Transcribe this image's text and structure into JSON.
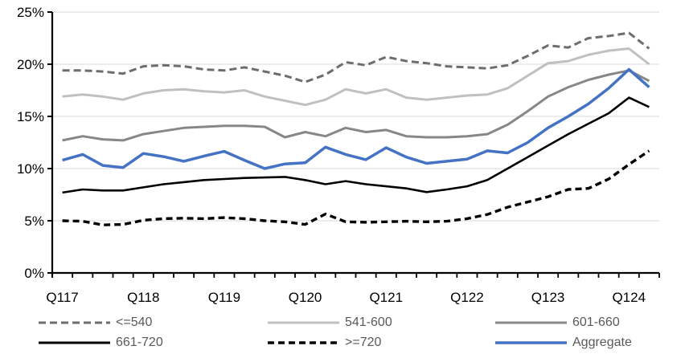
{
  "chart_data": {
    "type": "line",
    "title": "",
    "xlabel": "",
    "ylabel": "",
    "ylim": [
      0,
      25
    ],
    "y_tick_step": 5,
    "y_tick_labels": [
      "0%",
      "5%",
      "10%",
      "15%",
      "20%",
      "25%"
    ],
    "x_shown_labels": [
      "Q117",
      "Q118",
      "Q119",
      "Q120",
      "Q121",
      "Q122",
      "Q123",
      "Q124"
    ],
    "x_label_every": 4,
    "grid": "horizontal",
    "legend_position": "bottom",
    "categories": [
      "Q117",
      "Q217",
      "Q317",
      "Q417",
      "Q118",
      "Q218",
      "Q318",
      "Q418",
      "Q119",
      "Q219",
      "Q319",
      "Q419",
      "Q120",
      "Q220",
      "Q320",
      "Q420",
      "Q121",
      "Q221",
      "Q321",
      "Q421",
      "Q122",
      "Q222",
      "Q322",
      "Q422",
      "Q123",
      "Q223",
      "Q323",
      "Q423",
      "Q124",
      "Q224"
    ],
    "series": [
      {
        "name": "<=540",
        "color": "#6d6d6d",
        "dash": "9 5",
        "width": 3,
        "values": [
          19.4,
          19.4,
          19.3,
          19.1,
          19.8,
          19.9,
          19.8,
          19.5,
          19.4,
          19.7,
          19.3,
          18.9,
          18.3,
          19.0,
          20.2,
          19.9,
          20.7,
          20.3,
          20.1,
          19.8,
          19.7,
          19.6,
          19.9,
          20.8,
          21.8,
          21.6,
          22.5,
          22.7,
          23.0,
          21.5
        ]
      },
      {
        "name": "541-600",
        "color": "#c0c0c0",
        "dash": "",
        "width": 3,
        "values": [
          16.9,
          17.1,
          16.9,
          16.6,
          17.2,
          17.5,
          17.6,
          17.4,
          17.3,
          17.5,
          16.9,
          16.5,
          16.1,
          16.6,
          17.6,
          17.2,
          17.6,
          16.8,
          16.6,
          16.8,
          17.0,
          17.1,
          17.7,
          18.9,
          20.1,
          20.3,
          20.9,
          21.3,
          21.5,
          20.0
        ]
      },
      {
        "name": "601-660",
        "color": "#878787",
        "dash": "",
        "width": 3,
        "values": [
          12.7,
          13.1,
          12.8,
          12.7,
          13.3,
          13.6,
          13.9,
          14.0,
          14.1,
          14.1,
          14.0,
          13.0,
          13.5,
          13.1,
          13.9,
          13.5,
          13.7,
          13.1,
          13.0,
          13.0,
          13.1,
          13.3,
          14.2,
          15.5,
          16.9,
          17.8,
          18.5,
          19.0,
          19.4,
          18.4
        ]
      },
      {
        "name": "661-720",
        "color": "#000000",
        "dash": "",
        "width": 2.6,
        "values": [
          7.7,
          8.0,
          7.9,
          7.9,
          8.2,
          8.5,
          8.7,
          8.9,
          9.0,
          9.1,
          9.15,
          9.2,
          8.9,
          8.5,
          8.8,
          8.5,
          8.3,
          8.1,
          7.75,
          8.0,
          8.3,
          8.9,
          10.0,
          11.1,
          12.2,
          13.3,
          14.3,
          15.3,
          16.8,
          15.9
        ]
      },
      {
        "name": ">=720",
        "color": "#000000",
        "dash": "8 5",
        "width": 3.4,
        "values": [
          5.0,
          4.95,
          4.6,
          4.65,
          5.05,
          5.2,
          5.25,
          5.2,
          5.3,
          5.2,
          5.0,
          4.9,
          4.65,
          5.65,
          4.9,
          4.85,
          4.9,
          4.95,
          4.9,
          4.95,
          5.2,
          5.6,
          6.3,
          6.8,
          7.3,
          8.0,
          8.1,
          9.0,
          10.4,
          11.7
        ]
      },
      {
        "name": "Aggregate",
        "color": "#4472c4",
        "dash": "",
        "width": 3.5,
        "values": [
          10.8,
          11.35,
          10.3,
          10.1,
          11.45,
          11.15,
          10.7,
          11.2,
          11.65,
          10.8,
          10.0,
          10.45,
          10.55,
          12.05,
          11.35,
          10.85,
          12.0,
          11.1,
          10.5,
          10.7,
          10.9,
          11.7,
          11.5,
          12.5,
          13.9,
          15.0,
          16.2,
          17.7,
          19.5,
          17.8
        ]
      }
    ],
    "colors": {
      "gridline": "#d9d9d9",
      "axis": "#000000",
      "axis_label_text": "#000000",
      "legend_text": "#595959",
      "background": "#ffffff"
    }
  },
  "legend": {
    "items": [
      {
        "label": "<=540",
        "row": 0,
        "col": 0
      },
      {
        "label": "541-600",
        "row": 0,
        "col": 1
      },
      {
        "label": "601-660",
        "row": 0,
        "col": 2
      },
      {
        "label": "661-720",
        "row": 1,
        "col": 0
      },
      {
        "label": ">=720",
        "row": 1,
        "col": 1
      },
      {
        "label": "Aggregate",
        "row": 1,
        "col": 2
      }
    ]
  }
}
